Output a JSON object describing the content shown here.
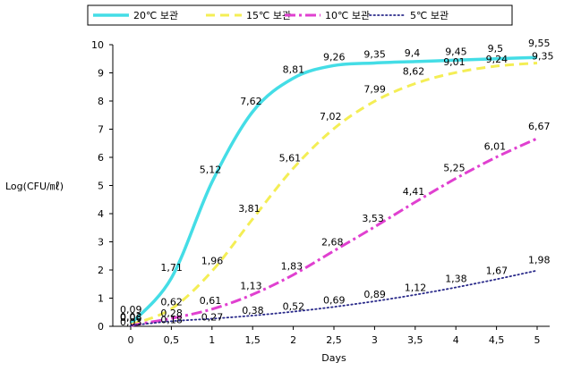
{
  "chart_data": {
    "type": "line",
    "title": "",
    "xlabel": "Days",
    "ylabel": "Log(CFU/㎖)",
    "xlim": [
      0,
      5
    ],
    "ylim": [
      0,
      10
    ],
    "x_ticks": [
      "0",
      "0.5",
      "1",
      "1.5",
      "2",
      "2.5",
      "3",
      "3.5",
      "4",
      "4.5",
      "5"
    ],
    "y_ticks": [
      "0",
      "1",
      "2",
      "3",
      "4",
      "5",
      "6",
      "7",
      "8",
      "9",
      "10"
    ],
    "grid": false,
    "legend_position": "top",
    "series": [
      {
        "name": "20℃ 보관",
        "color": "#44dde6",
        "style": "solid",
        "x": [
          0,
          0.5,
          1,
          1.5,
          2,
          2.5,
          3,
          3.5,
          4,
          4.5,
          5
        ],
        "values": [
          0.09,
          1.71,
          5.12,
          7.62,
          8.81,
          9.26,
          9.35,
          9.4,
          9.45,
          9.5,
          9.55
        ],
        "labels": [
          "0,09",
          "1,71",
          "5,12",
          "7,62",
          "8,81",
          "9,26",
          "9,35",
          "9,4",
          "9,45",
          "9,5",
          "9,55"
        ]
      },
      {
        "name": "15℃ 보관",
        "color": "#f4ee55",
        "style": "dashed",
        "x": [
          0,
          0.5,
          1,
          1.5,
          2,
          2.5,
          3,
          3.5,
          4,
          4.5,
          5
        ],
        "values": [
          0.06,
          0.62,
          1.96,
          3.81,
          5.61,
          7.02,
          7.99,
          8.62,
          9.01,
          9.24,
          9.35
        ],
        "labels": [
          "0,06",
          "0,62",
          "1,96",
          "3,81",
          "5,61",
          "7,02",
          "7,99",
          "8,62",
          "9,01",
          "9,24",
          "9,35"
        ]
      },
      {
        "name": "10℃ 보관",
        "color": "#e040d0",
        "style": "dashdot",
        "x": [
          0,
          0.5,
          1,
          1.5,
          2,
          2.5,
          3,
          3.5,
          4,
          4.5,
          5
        ],
        "values": [
          0.03,
          0.28,
          0.61,
          1.13,
          1.83,
          2.68,
          3.53,
          4.41,
          5.25,
          6.01,
          6.67
        ],
        "labels": [
          "0,03",
          "0,28",
          "0,61",
          "1,13",
          "1,83",
          "2,68",
          "3,53",
          "4,41",
          "5,25",
          "6,01",
          "6,67"
        ]
      },
      {
        "name": "5℃ 보관",
        "color": "#2a2a8a",
        "style": "dotted",
        "x": [
          0,
          0.5,
          1,
          1.5,
          2,
          2.5,
          3,
          3.5,
          4,
          4.5,
          5
        ],
        "values": [
          0.03,
          0.18,
          0.27,
          0.38,
          0.52,
          0.69,
          0.89,
          1.12,
          1.38,
          1.67,
          1.98
        ],
        "labels": [
          "0,03",
          "0,18",
          "0,27",
          "0,38",
          "0,52",
          "0,69",
          "0,89",
          "1,12",
          "1,38",
          "1,67",
          "1,98"
        ]
      }
    ]
  }
}
